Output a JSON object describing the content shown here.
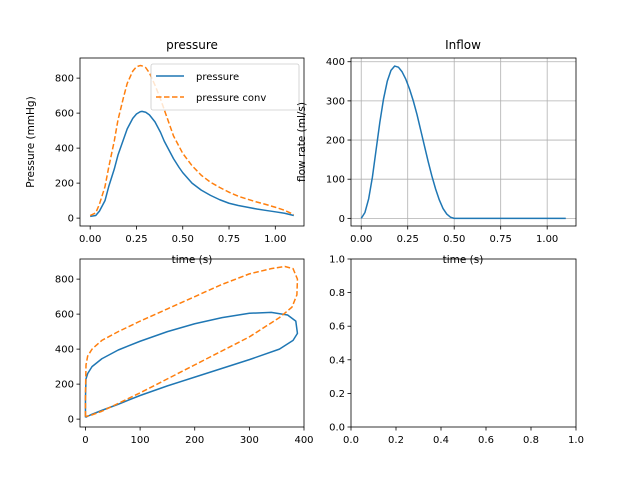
{
  "chart_data": [
    {
      "type": "line",
      "title": "pressure",
      "xlabel": "time (s)",
      "ylabel": "Pressure (mmHg)",
      "xlim": [
        -0.055,
        1.155
      ],
      "ylim": [
        -45,
        915
      ],
      "xticks": [
        0.0,
        0.25,
        0.5,
        0.75,
        1.0
      ],
      "xtick_labels": [
        "0.00",
        "0.25",
        "0.50",
        "0.75",
        "1.00"
      ],
      "yticks": [
        0,
        200,
        400,
        600,
        800
      ],
      "ytick_labels": [
        "0",
        "200",
        "400",
        "600",
        "800"
      ],
      "grid": false,
      "legend": "top-right",
      "series": [
        {
          "name": "pressure",
          "color": "#1f77b4",
          "style": "solid",
          "x": [
            0,
            0.03,
            0.05,
            0.08,
            0.1,
            0.13,
            0.15,
            0.18,
            0.2,
            0.23,
            0.25,
            0.27,
            0.28,
            0.3,
            0.32,
            0.35,
            0.38,
            0.4,
            0.43,
            0.45,
            0.48,
            0.5,
            0.55,
            0.6,
            0.65,
            0.7,
            0.75,
            0.8,
            0.85,
            0.9,
            0.95,
            1.0,
            1.05,
            1.1
          ],
          "y": [
            10,
            15,
            40,
            100,
            180,
            280,
            360,
            450,
            510,
            570,
            595,
            608,
            610,
            605,
            590,
            550,
            490,
            440,
            380,
            340,
            290,
            260,
            200,
            160,
            130,
            105,
            85,
            72,
            62,
            52,
            44,
            36,
            28,
            15
          ]
        },
        {
          "name": "pressure conv",
          "color": "#ff7f0e",
          "style": "dashed",
          "x": [
            0,
            0.03,
            0.05,
            0.08,
            0.1,
            0.13,
            0.15,
            0.18,
            0.2,
            0.23,
            0.25,
            0.27,
            0.28,
            0.3,
            0.32,
            0.35,
            0.38,
            0.4,
            0.43,
            0.45,
            0.48,
            0.5,
            0.55,
            0.6,
            0.65,
            0.7,
            0.75,
            0.8,
            0.85,
            0.9,
            0.95,
            1.0,
            1.05,
            1.1
          ],
          "y": [
            15,
            30,
            80,
            180,
            290,
            440,
            560,
            690,
            770,
            840,
            865,
            872,
            870,
            860,
            830,
            760,
            680,
            620,
            530,
            470,
            410,
            370,
            300,
            245,
            205,
            175,
            148,
            125,
            108,
            92,
            78,
            62,
            45,
            20
          ]
        }
      ]
    },
    {
      "type": "line",
      "title": "Inflow",
      "xlabel": "time (s)",
      "ylabel": "flow rate (ml/s)",
      "xlim": [
        -0.055,
        1.155
      ],
      "ylim": [
        -19.5,
        409.5
      ],
      "xticks": [
        0.0,
        0.25,
        0.5,
        0.75,
        1.0
      ],
      "xtick_labels": [
        "0.00",
        "0.25",
        "0.50",
        "0.75",
        "1.00"
      ],
      "yticks": [
        0,
        100,
        200,
        300,
        400
      ],
      "ytick_labels": [
        "0",
        "100",
        "200",
        "300",
        "400"
      ],
      "grid": true,
      "series": [
        {
          "color": "#1f77b4",
          "style": "solid",
          "x": [
            0,
            0.02,
            0.04,
            0.06,
            0.08,
            0.1,
            0.12,
            0.14,
            0.16,
            0.18,
            0.2,
            0.22,
            0.24,
            0.26,
            0.28,
            0.3,
            0.32,
            0.34,
            0.36,
            0.38,
            0.4,
            0.42,
            0.44,
            0.46,
            0.48,
            0.5,
            0.52,
            0.6,
            0.8,
            1.0,
            1.1
          ],
          "y": [
            0,
            15,
            50,
            105,
            175,
            245,
            305,
            350,
            378,
            389,
            386,
            374,
            355,
            330,
            300,
            265,
            225,
            185,
            145,
            108,
            75,
            47,
            25,
            11,
            3,
            0,
            0,
            0,
            0,
            0,
            0
          ]
        }
      ]
    },
    {
      "type": "line",
      "xlim": [
        -10,
        400
      ],
      "ylim": [
        -45,
        915
      ],
      "xticks": [
        0,
        100,
        200,
        300,
        400
      ],
      "xtick_labels": [
        "0",
        "100",
        "200",
        "300",
        "400"
      ],
      "yticks": [
        0,
        200,
        400,
        600,
        800
      ],
      "ytick_labels": [
        "0",
        "200",
        "400",
        "600",
        "800"
      ],
      "grid": false,
      "series": [
        {
          "color": "#1f77b4",
          "style": "solid",
          "x": [
            0,
            0,
            1,
            4,
            12,
            30,
            60,
            100,
            150,
            200,
            250,
            300,
            340,
            370,
            385,
            388,
            380,
            355,
            300,
            250,
            200,
            150,
            100,
            60,
            30,
            10,
            0
          ],
          "y": [
            10,
            120,
            230,
            260,
            300,
            345,
            395,
            445,
            500,
            545,
            580,
            605,
            610,
            595,
            560,
            490,
            450,
            400,
            340,
            290,
            240,
            190,
            135,
            85,
            50,
            25,
            10
          ]
        },
        {
          "color": "#ff7f0e",
          "style": "dashed",
          "x": [
            0,
            0,
            1,
            4,
            12,
            30,
            60,
            100,
            150,
            200,
            250,
            300,
            340,
            365,
            380,
            388,
            387,
            378,
            355,
            300,
            250,
            200,
            150,
            100,
            60,
            30,
            10,
            0
          ],
          "y": [
            15,
            150,
            310,
            360,
            400,
            450,
            500,
            560,
            630,
            700,
            770,
            830,
            860,
            872,
            860,
            800,
            710,
            640,
            580,
            470,
            390,
            310,
            230,
            150,
            90,
            45,
            22,
            15
          ]
        }
      ]
    },
    {
      "type": "line",
      "xlim": [
        0,
        1
      ],
      "ylim": [
        0,
        1
      ],
      "xticks": [
        0.0,
        0.2,
        0.4,
        0.6,
        0.8,
        1.0
      ],
      "xtick_labels": [
        "0.0",
        "0.2",
        "0.4",
        "0.6",
        "0.8",
        "1.0"
      ],
      "yticks": [
        0.0,
        0.2,
        0.4,
        0.6,
        0.8,
        1.0
      ],
      "ytick_labels": [
        "0.0",
        "0.2",
        "0.4",
        "0.6",
        "0.8",
        "1.0"
      ],
      "grid": false,
      "series": []
    }
  ]
}
